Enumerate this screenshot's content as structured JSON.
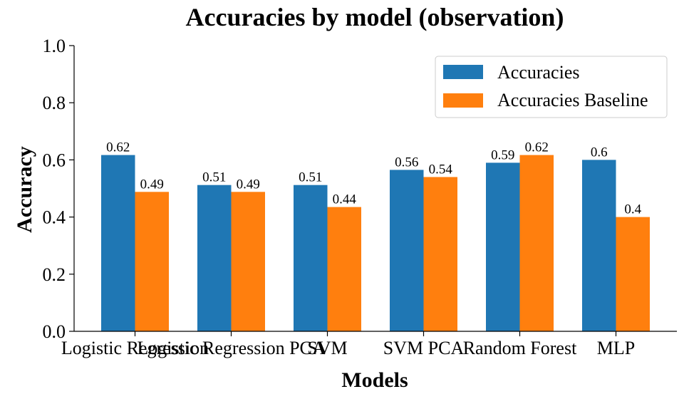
{
  "chart_data": {
    "type": "bar",
    "title": "Accuracies by model (observation)",
    "xlabel": "Models",
    "ylabel": "Accuracy",
    "ylim": [
      0,
      1.0
    ],
    "yticks": [
      "0.0",
      "0.2",
      "0.4",
      "0.6",
      "0.8",
      "1.0"
    ],
    "categories": [
      "Logistic Regression",
      "Logistic Regression PCA",
      "SVM",
      "SVM PCA",
      "Random Forest",
      "MLP"
    ],
    "series": [
      {
        "name": "Accuracies",
        "color": "#1f77b4",
        "values": [
          0.617,
          0.512,
          0.512,
          0.565,
          0.59,
          0.6
        ],
        "labels": [
          "0.62",
          "0.51",
          "0.51",
          "0.56",
          "0.59",
          "0.6"
        ]
      },
      {
        "name": "Accuracies Baseline",
        "color": "#ff7f0e",
        "values": [
          0.488,
          0.488,
          0.435,
          0.54,
          0.617,
          0.4
        ],
        "labels": [
          "0.49",
          "0.49",
          "0.44",
          "0.54",
          "0.62",
          "0.4"
        ]
      }
    ],
    "legend": "top-right",
    "grid": false
  }
}
